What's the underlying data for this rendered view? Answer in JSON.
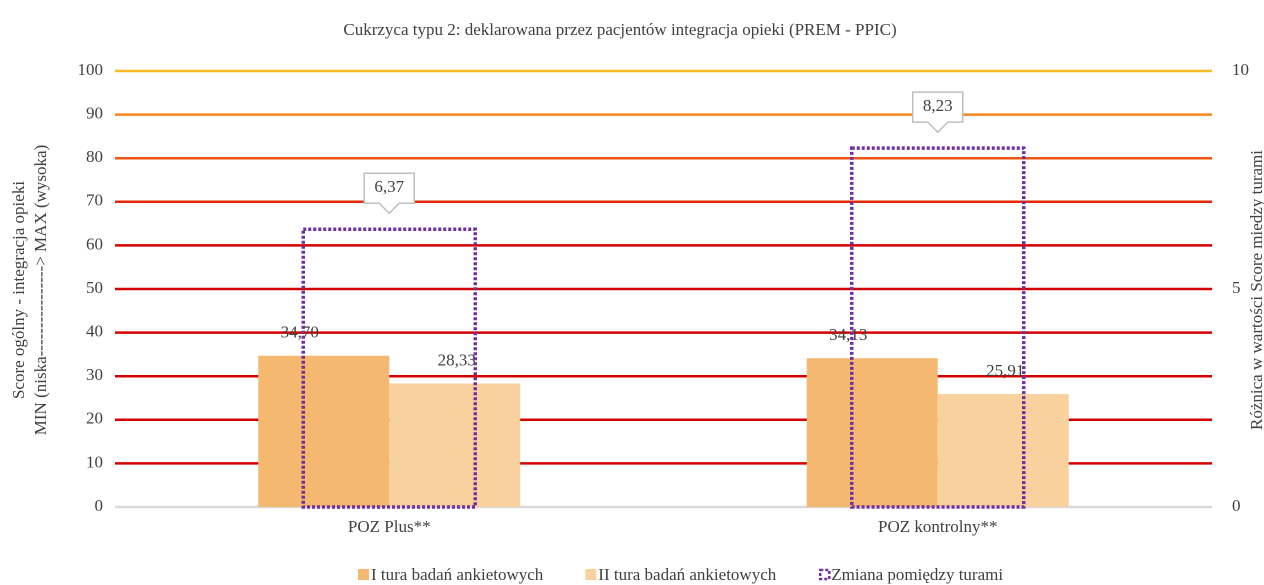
{
  "chart_data": {
    "type": "bar",
    "title": "Cukrzyca typu 2: deklarowana przez pacjentów integracja opieki (PREM - PPIC)",
    "ylabel": [
      "Score ogólny - integracja opieki",
      "MIN (niska----------------> MAX (wysoka)"
    ],
    "y2label": "Różnica w wartości Score miedzy turami",
    "categories": [
      "POZ Plus**",
      "POZ kontrolny**"
    ],
    "series": [
      {
        "name": "I tura badań ankietowych",
        "color": "#f4b870",
        "values": [
          34.7,
          34.13
        ],
        "value_labels": [
          "34,70",
          "34,13"
        ]
      },
      {
        "name": "II tura badań ankietowych",
        "color": "#f9d19f",
        "values": [
          28.33,
          25.91
        ],
        "value_labels": [
          "28,33",
          "25,91"
        ]
      },
      {
        "name": "Zmiana pomiędzy turami",
        "color": "#7030a0",
        "axis": "y2",
        "values": [
          6.37,
          8.23
        ],
        "value_labels": [
          "6,37",
          "8,23"
        ]
      }
    ],
    "ylim": [
      0,
      100
    ],
    "yticks": [
      0,
      10,
      20,
      30,
      40,
      50,
      60,
      70,
      80,
      90,
      100
    ],
    "y2lim": [
      0,
      10
    ],
    "y2ticks": [
      0,
      5,
      10
    ],
    "grid": true,
    "grid_colors": [
      "#d9d9d9",
      "#d40000",
      "#d40000",
      "#d40000",
      "#d40000",
      "#d40000",
      "#d40000",
      "#e42a0a",
      "#ee5512",
      "#f5861e",
      "#f7b926"
    ],
    "legend": "bottom"
  }
}
